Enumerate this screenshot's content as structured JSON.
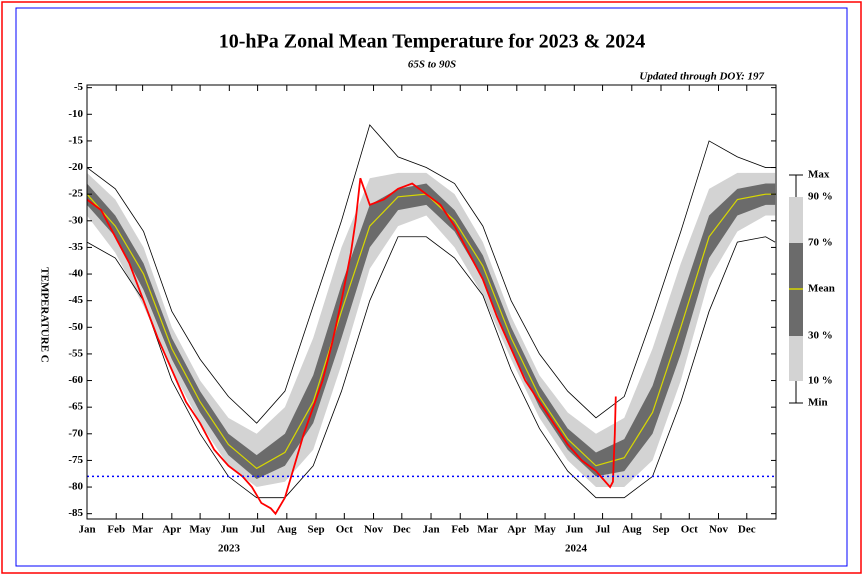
{
  "chart_data": {
    "type": "line",
    "title": "10-hPa Zonal Mean Temperature for 2023 & 2024",
    "subtitle": "65S to 90S",
    "annotation": "Updated through DOY: 197",
    "y_label": "TEMPERATURE C",
    "year_labels": [
      "2023",
      "2024"
    ],
    "x": [
      0,
      30,
      60,
      90,
      120,
      150,
      180,
      210,
      240,
      270,
      300,
      330,
      360,
      390,
      420,
      450,
      480,
      510,
      540,
      570,
      600,
      630,
      660,
      690,
      720,
      730
    ],
    "xlim": [
      0,
      731
    ],
    "xticks": [
      {
        "value": 0,
        "label": "Jan"
      },
      {
        "value": 31,
        "label": "Feb"
      },
      {
        "value": 59,
        "label": "Mar"
      },
      {
        "value": 90,
        "label": "Apr"
      },
      {
        "value": 120,
        "label": "May"
      },
      {
        "value": 151,
        "label": "Jun"
      },
      {
        "value": 181,
        "label": "Jul"
      },
      {
        "value": 212,
        "label": "Aug"
      },
      {
        "value": 243,
        "label": "Sep"
      },
      {
        "value": 273,
        "label": "Oct"
      },
      {
        "value": 304,
        "label": "Nov"
      },
      {
        "value": 334,
        "label": "Dec"
      },
      {
        "value": 365,
        "label": "Jan"
      },
      {
        "value": 396,
        "label": "Feb"
      },
      {
        "value": 425,
        "label": "Mar"
      },
      {
        "value": 456,
        "label": "Apr"
      },
      {
        "value": 486,
        "label": "May"
      },
      {
        "value": 517,
        "label": "Jun"
      },
      {
        "value": 547,
        "label": "Jul"
      },
      {
        "value": 578,
        "label": "Aug"
      },
      {
        "value": 609,
        "label": "Sep"
      },
      {
        "value": 639,
        "label": "Oct"
      },
      {
        "value": 670,
        "label": "Nov"
      },
      {
        "value": 700,
        "label": "Dec"
      }
    ],
    "ylim": [
      -86,
      -4.5
    ],
    "yticks": [
      -5,
      -10,
      -15,
      -20,
      -25,
      -30,
      -35,
      -40,
      -45,
      -50,
      -55,
      -60,
      -65,
      -70,
      -75,
      -80,
      -85
    ],
    "reference_line": {
      "value": -78,
      "color": "#0000ff"
    },
    "series": [
      {
        "name": "Max",
        "color": "#000000",
        "values": [
          -20,
          -24,
          -32,
          -47,
          -56,
          -63,
          -68,
          -62,
          -46,
          -30,
          -12,
          -18,
          -20,
          -23,
          -31,
          -45,
          -55,
          -62,
          -67,
          -63,
          -48,
          -32,
          -15,
          -18,
          -20,
          -20
        ]
      },
      {
        "name": "90 %",
        "color": "#d3d3d3",
        "values": [
          -21,
          -26,
          -35,
          -50,
          -60,
          -67,
          -70,
          -65,
          -52,
          -35,
          -22,
          -21,
          -21,
          -25,
          -34,
          -48,
          -59,
          -66,
          -70,
          -67,
          -54,
          -38,
          -24,
          -21,
          -21,
          -21
        ]
      },
      {
        "name": "70 %",
        "color": "#6b6b6b",
        "values": [
          -23,
          -29,
          -38,
          -52,
          -62,
          -70,
          -74,
          -70,
          -59,
          -42,
          -27,
          -24,
          -23,
          -28,
          -36.5,
          -50,
          -61,
          -69,
          -73.5,
          -71,
          -61,
          -45,
          -29,
          -24,
          -23,
          -23
        ]
      },
      {
        "name": "Mean",
        "color": "#d8d800",
        "values": [
          -25,
          -31,
          -40,
          -54,
          -64,
          -72,
          -76.5,
          -73.5,
          -64,
          -47,
          -31,
          -25.5,
          -25,
          -30,
          -38.5,
          -52,
          -63,
          -71,
          -76,
          -74.5,
          -66,
          -50,
          -33,
          -26,
          -25,
          -25
        ]
      },
      {
        "name": "30 %",
        "color": "#6b6b6b",
        "values": [
          -27,
          -33,
          -43,
          -56,
          -66,
          -74,
          -78.5,
          -76,
          -68,
          -52,
          -35,
          -28,
          -27,
          -32,
          -41,
          -54,
          -65,
          -73,
          -78,
          -77,
          -70,
          -55,
          -37,
          -29,
          -27,
          -27
        ]
      },
      {
        "name": "10 %",
        "color": "#d3d3d3",
        "values": [
          -29,
          -36,
          -46,
          -58,
          -68,
          -76,
          -80,
          -79,
          -73,
          -57,
          -39,
          -31,
          -29,
          -35,
          -44,
          -56,
          -67,
          -75,
          -80,
          -80,
          -75,
          -60,
          -41,
          -32,
          -29,
          -29
        ]
      },
      {
        "name": "Min",
        "color": "#000000",
        "values": [
          -34,
          -37,
          -45,
          -60,
          -70,
          -78,
          -82,
          -82,
          -76,
          -62,
          -45,
          -33,
          -33,
          -37,
          -44,
          -58,
          -69,
          -77,
          -82,
          -82,
          -78,
          -64,
          -47,
          -34,
          -33,
          -34
        ]
      },
      {
        "color": "#ff0000",
        "x": [
          0,
          15,
          30,
          45,
          60,
          75,
          90,
          105,
          120,
          135,
          150,
          165,
          175,
          185,
          195,
          200,
          210,
          220,
          230,
          240,
          250,
          260,
          270,
          280,
          285,
          290,
          300,
          315,
          330,
          345,
          360,
          375,
          390,
          405,
          420,
          435,
          450,
          465,
          480,
          495,
          510,
          525,
          540,
          550,
          555,
          558,
          560,
          561
        ],
        "values": [
          -26,
          -28,
          -33,
          -38,
          -45,
          -52,
          -58,
          -64,
          -68,
          -73,
          -76,
          -78,
          -80,
          -83,
          -84,
          -85,
          -82,
          -76,
          -70,
          -65,
          -60,
          -53,
          -45,
          -36,
          -30,
          -22,
          -27,
          -26,
          -24,
          -23,
          -25,
          -27,
          -31,
          -36,
          -41,
          -48,
          -54,
          -60,
          -64,
          -68,
          -72,
          -75,
          -77,
          -79,
          -80,
          -79,
          -70,
          -63
        ]
      }
    ]
  }
}
